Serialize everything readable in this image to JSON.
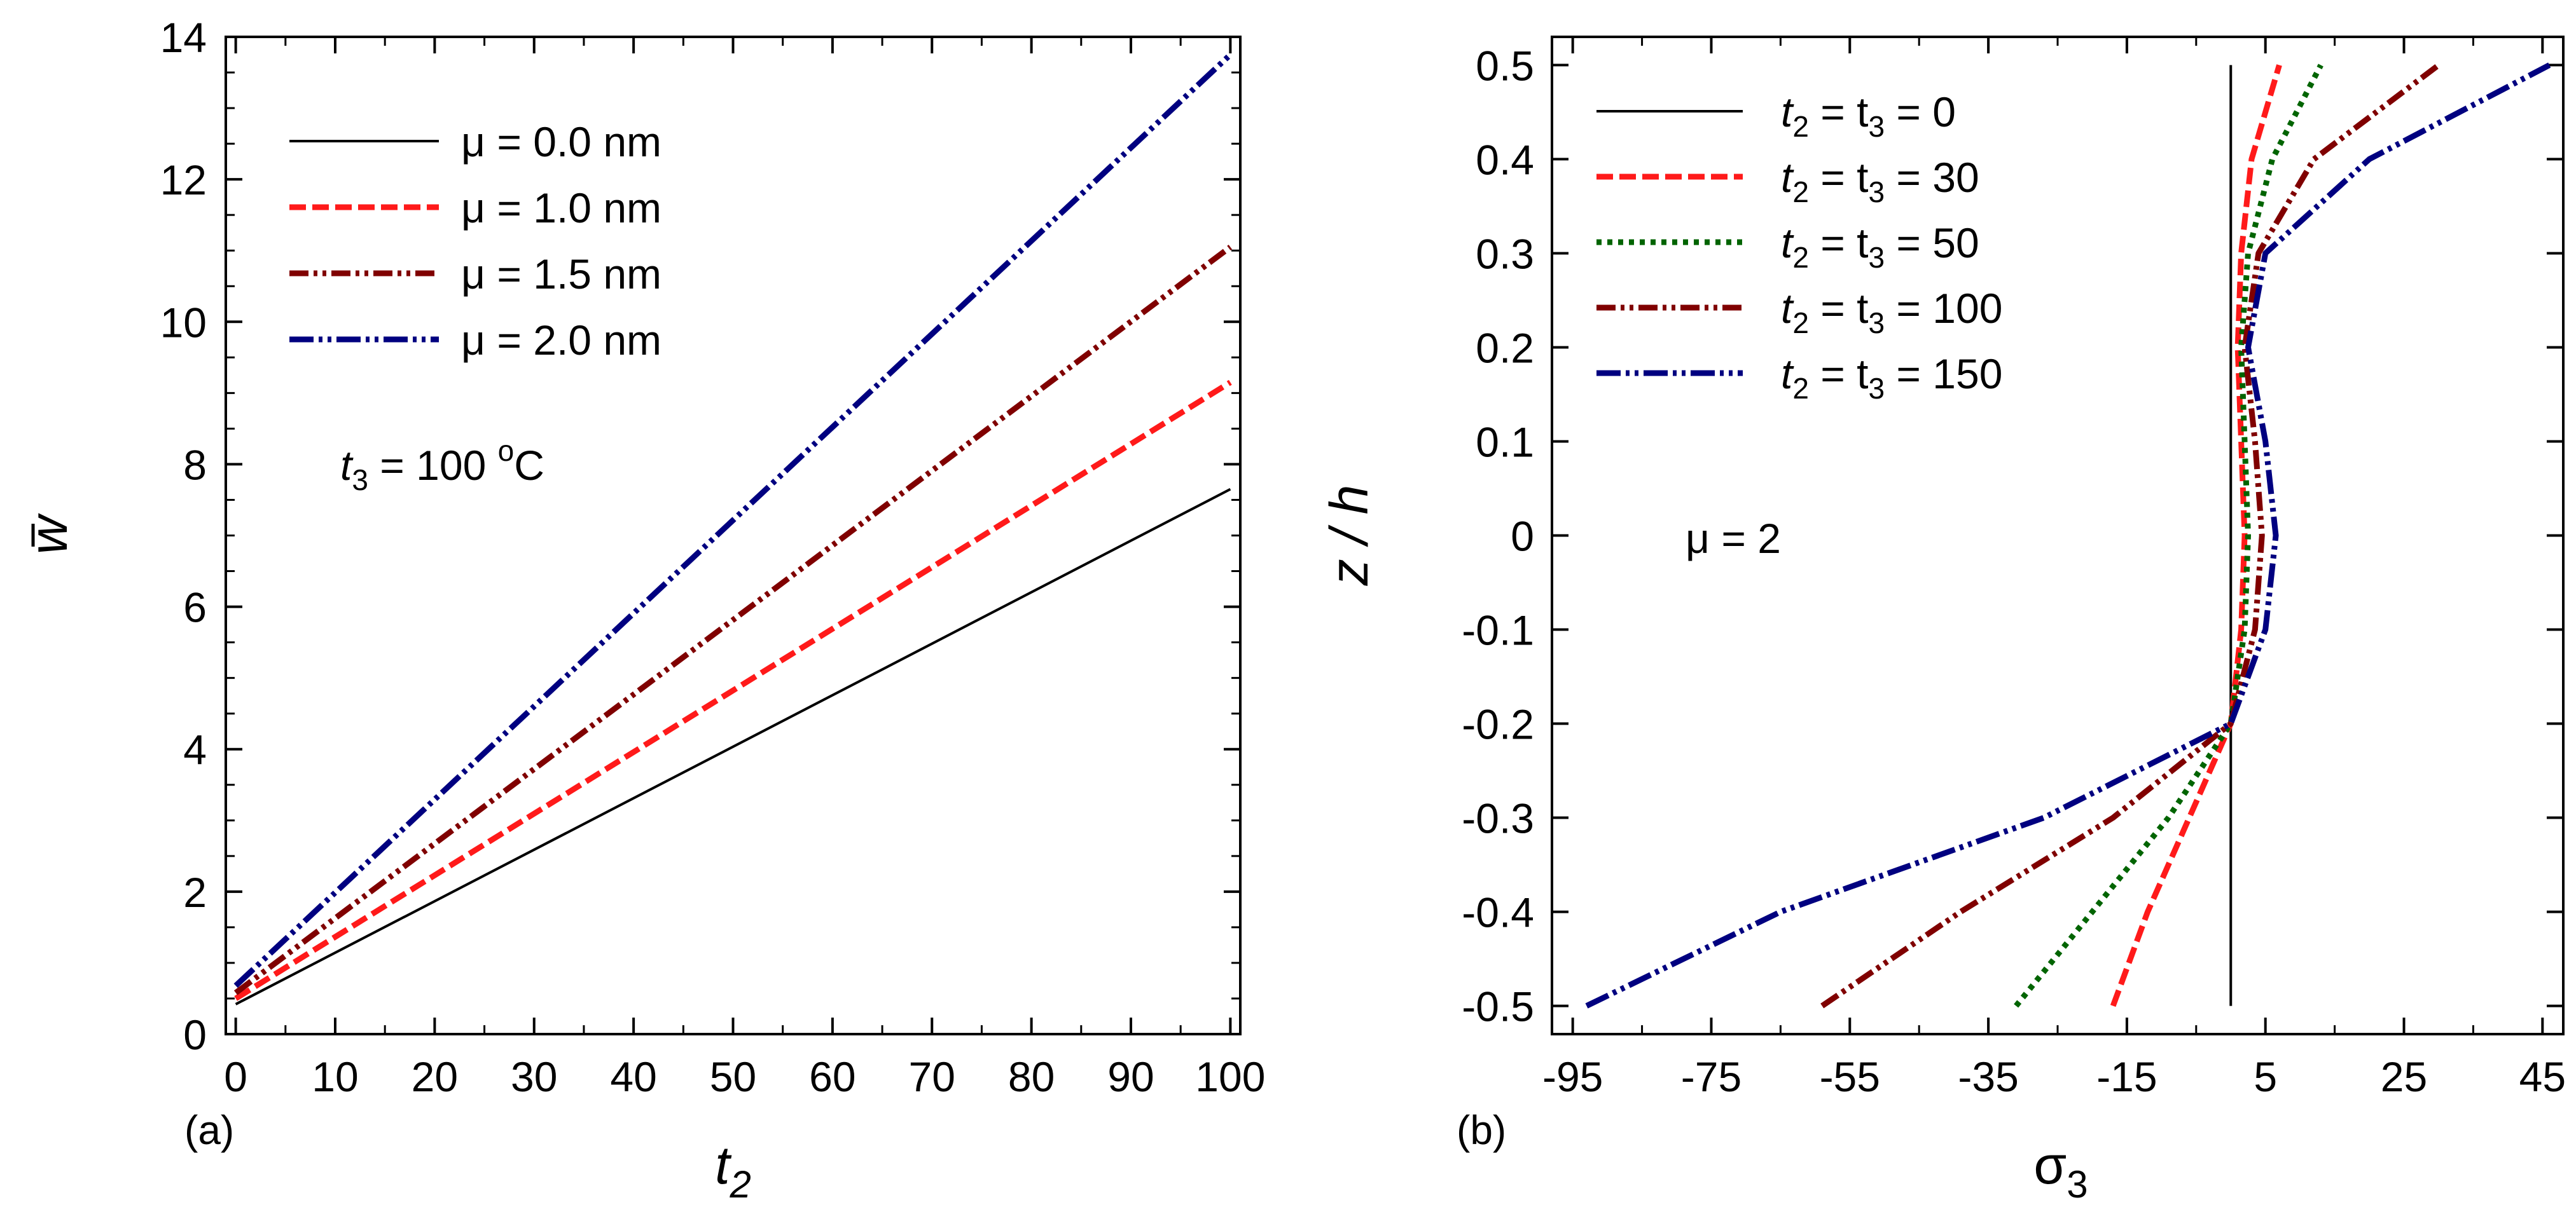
{
  "chart_data": [
    {
      "type": "line",
      "panel_label": "(a)",
      "xlabel": "t",
      "xlabel_sub": "2",
      "ylabel": "w",
      "xlim": [
        -1,
        101
      ],
      "ylim": [
        0,
        14
      ],
      "xticks": [
        0,
        10,
        20,
        30,
        40,
        50,
        60,
        70,
        80,
        90,
        100
      ],
      "yticks": [
        0,
        2,
        4,
        6,
        8,
        10,
        12,
        14
      ],
      "annotation": {
        "prefix": "t",
        "sub": "3",
        "value": " = 100  ",
        "sup": "o",
        "unit": "C"
      },
      "series": [
        {
          "name": "μ = 0.0 nm",
          "color": "#000000",
          "x": [
            0,
            100
          ],
          "y": [
            0.42,
            7.65
          ]
        },
        {
          "name": "μ = 1.0 nm",
          "color": "#ff1a1a",
          "x": [
            0,
            100
          ],
          "y": [
            0.5,
            9.15
          ]
        },
        {
          "name": "μ = 1.5 nm",
          "color": "#800000",
          "x": [
            0,
            100
          ],
          "y": [
            0.58,
            11.05
          ]
        },
        {
          "name": "μ = 2.0 nm",
          "color": "#000080",
          "x": [
            0,
            100
          ],
          "y": [
            0.68,
            13.75
          ]
        }
      ]
    },
    {
      "type": "line",
      "panel_label": "(b)",
      "xlabel": "σ",
      "xlabel_sub": "3",
      "ylabel": "z / h",
      "xlim": [
        -98,
        48
      ],
      "ylim": [
        -0.53,
        0.53
      ],
      "xticks": [
        -95,
        -75,
        -55,
        -35,
        -15,
        5,
        25,
        45
      ],
      "yticks": [
        0.5,
        0.4,
        0.3,
        0.2,
        0.1,
        0,
        -0.1,
        -0.2,
        -0.3,
        -0.4,
        -0.5
      ],
      "annotation": {
        "text": "μ = 2"
      },
      "legend_text": [
        {
          "prefix": "t",
          "mid": " = t",
          "value": " = 0"
        },
        {
          "prefix": "t",
          "mid": " = t",
          "value": " = 30"
        },
        {
          "prefix": "t",
          "mid": " = t",
          "value": " = 50"
        },
        {
          "prefix": "t",
          "mid": " = t",
          "value": " = 100"
        },
        {
          "prefix": "t",
          "mid": " = t",
          "value": " = 150"
        }
      ],
      "series": [
        {
          "name": "t2 = t3 = 0",
          "color": "#000000",
          "points": [
            [
              0,
              -0.5
            ],
            [
              0,
              -0.2
            ],
            [
              0,
              0.5
            ]
          ]
        },
        {
          "name": "t2 = t3 = 30",
          "color": "#ff1a1a",
          "points": [
            [
              -17,
              -0.5
            ],
            [
              -12,
              -0.4
            ],
            [
              -6,
              -0.3
            ],
            [
              0,
              -0.2
            ],
            [
              1.5,
              -0.1
            ],
            [
              2,
              0
            ],
            [
              1.5,
              0.1
            ],
            [
              1,
              0.2
            ],
            [
              1.5,
              0.3
            ],
            [
              3,
              0.4
            ],
            [
              7,
              0.5
            ]
          ]
        },
        {
          "name": "t2 = t3 = 50",
          "color": "#006400",
          "points": [
            [
              -31,
              -0.5
            ],
            [
              -20,
              -0.4
            ],
            [
              -9,
              -0.3
            ],
            [
              0,
              -0.2
            ],
            [
              2,
              -0.1
            ],
            [
              2.5,
              0
            ],
            [
              2,
              0.1
            ],
            [
              1.5,
              0.2
            ],
            [
              2.5,
              0.3
            ],
            [
              6,
              0.4
            ],
            [
              13,
              0.5
            ]
          ]
        },
        {
          "name": "t2 = t3 = 100",
          "color": "#800000",
          "points": [
            [
              -59,
              -0.5
            ],
            [
              -39,
              -0.4
            ],
            [
              -17,
              -0.3
            ],
            [
              0,
              -0.2
            ],
            [
              3.5,
              -0.1
            ],
            [
              4.5,
              0
            ],
            [
              3.5,
              0.1
            ],
            [
              2,
              0.2
            ],
            [
              4,
              0.3
            ],
            [
              12,
              0.4
            ],
            [
              30,
              0.5
            ]
          ]
        },
        {
          "name": "t2 = t3 = 150",
          "color": "#000080",
          "points": [
            [
              -93,
              -0.5
            ],
            [
              -65,
              -0.4
            ],
            [
              -27,
              -0.3
            ],
            [
              0,
              -0.2
            ],
            [
              5,
              -0.1
            ],
            [
              6.5,
              0
            ],
            [
              5,
              0.1
            ],
            [
              2.5,
              0.2
            ],
            [
              5,
              0.3
            ],
            [
              20,
              0.4
            ],
            [
              46,
              0.5
            ]
          ]
        }
      ]
    }
  ]
}
